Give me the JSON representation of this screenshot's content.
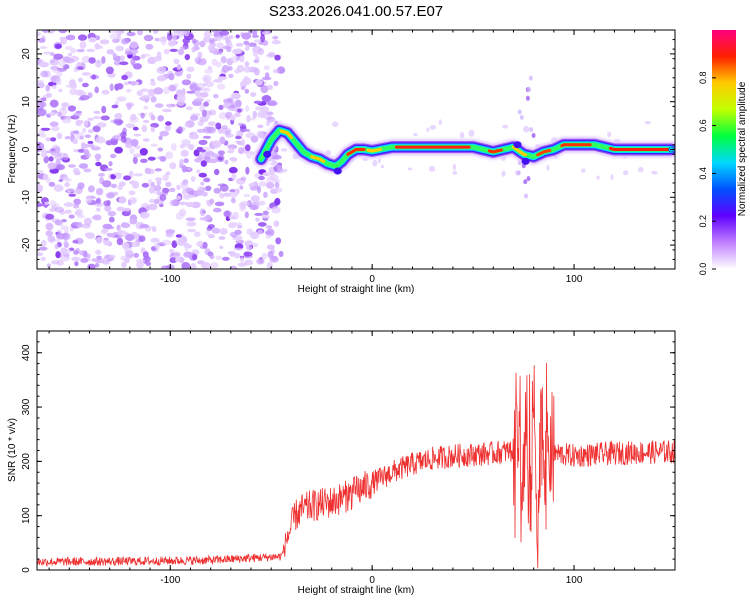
{
  "title": "S233.2026.041.00.57.E07",
  "chart_data": [
    {
      "type": "heatmap",
      "name": "spectrogram",
      "xlabel": "Height of straight line (km)",
      "ylabel": "Frequency (Hz)",
      "xlim": [
        -166,
        150
      ],
      "ylim": [
        -25,
        25
      ],
      "xticks": [
        -100,
        0,
        100
      ],
      "xtick_labels": [
        "-100",
        "0",
        "100"
      ],
      "yticks": [
        -20,
        -10,
        0,
        10,
        20
      ],
      "ytick_labels": [
        "-20",
        "-10",
        "0",
        "10",
        "20"
      ],
      "noise_region_x": [
        -166,
        -48
      ],
      "ridge": {
        "x": [
          -55,
          -50,
          -46,
          -42,
          -38,
          -34,
          -30,
          -26,
          -22,
          -18,
          -15,
          -12,
          -8,
          -4,
          0,
          10,
          20,
          30,
          40,
          50,
          55,
          60,
          65,
          70,
          75,
          80,
          85,
          90,
          95,
          100,
          105,
          110,
          115,
          120,
          130,
          140,
          148
        ],
        "y": [
          -2,
          2,
          4,
          3.5,
          1.5,
          -0.5,
          -1.5,
          -2,
          -3,
          -3.5,
          -2.5,
          -1,
          0,
          0,
          -0.3,
          0.5,
          0.5,
          0.5,
          0.5,
          0.5,
          0,
          -0.5,
          0,
          0.5,
          -1,
          -1.5,
          -0.5,
          0,
          1,
          1,
          1,
          1,
          0.5,
          0,
          0,
          0,
          0
        ]
      },
      "colorbar": {
        "label": "Normalized spectral amplitude",
        "range": [
          0,
          1
        ],
        "ticks": [
          0.0,
          0.2,
          0.4,
          0.6,
          0.8
        ],
        "tick_labels": [
          "0.0",
          "0.2",
          "0.4",
          "0.6",
          "0.8"
        ],
        "colors": [
          "#ffffff",
          "#c080ff",
          "#6000ff",
          "#0050ff",
          "#00d8ff",
          "#00ff40",
          "#c0ff00",
          "#ffcc00",
          "#ff2000",
          "#ff0080"
        ]
      }
    },
    {
      "type": "line",
      "name": "snr",
      "xlabel": "Height of straight line (km)",
      "ylabel": "SNR (10 * v/v)",
      "xlim": [
        -166,
        150
      ],
      "ylim": [
        0,
        440
      ],
      "xticks": [
        -100,
        0,
        100
      ],
      "xtick_labels": [
        "-100",
        "0",
        "100"
      ],
      "yticks": [
        0,
        100,
        200,
        300,
        400
      ],
      "ytick_labels": [
        "0",
        "100",
        "200",
        "300",
        "400"
      ],
      "color": "#ee3030",
      "trend": {
        "x": [
          -166,
          -120,
          -80,
          -45,
          -42,
          -38,
          -35,
          -30,
          -20,
          -10,
          0,
          10,
          20,
          30,
          40,
          60,
          70,
          72,
          74,
          76,
          78,
          80,
          82,
          84,
          86,
          88,
          90,
          100,
          120,
          150
        ],
        "y": [
          15,
          16,
          18,
          25,
          60,
          100,
          110,
          118,
          125,
          140,
          160,
          180,
          195,
          205,
          210,
          215,
          220,
          280,
          120,
          250,
          80,
          320,
          60,
          300,
          150,
          230,
          215,
          210,
          215,
          218
        ]
      }
    }
  ]
}
